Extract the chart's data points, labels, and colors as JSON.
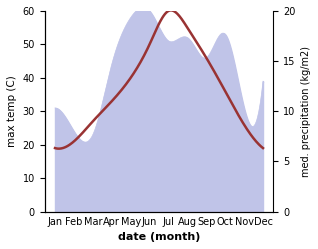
{
  "months": [
    "Jan",
    "Feb",
    "Mar",
    "Apr",
    "May",
    "Jun",
    "Jul",
    "Aug",
    "Sep",
    "Oct",
    "Nov",
    "Dec"
  ],
  "temp_c": [
    19,
    21,
    27,
    33,
    40,
    50,
    60,
    55,
    46,
    36,
    26,
    19
  ],
  "precip_scaled": [
    31,
    24,
    23,
    44,
    58,
    60,
    51,
    52,
    46,
    53,
    31,
    39
  ],
  "temp_color": "#993333",
  "precip_fill_color": "#c0c4e8",
  "left_ylim": [
    0,
    60
  ],
  "right_ylim": [
    0,
    20
  ],
  "left_yticks": [
    0,
    10,
    20,
    30,
    40,
    50,
    60
  ],
  "right_yticks": [
    0,
    5,
    10,
    15,
    20
  ],
  "xlabel": "date (month)",
  "ylabel_left": "max temp (C)",
  "ylabel_right": "med. precipitation (kg/m2)",
  "scale_factor": 3,
  "bg_color": "#ffffff",
  "line_width": 1.8
}
